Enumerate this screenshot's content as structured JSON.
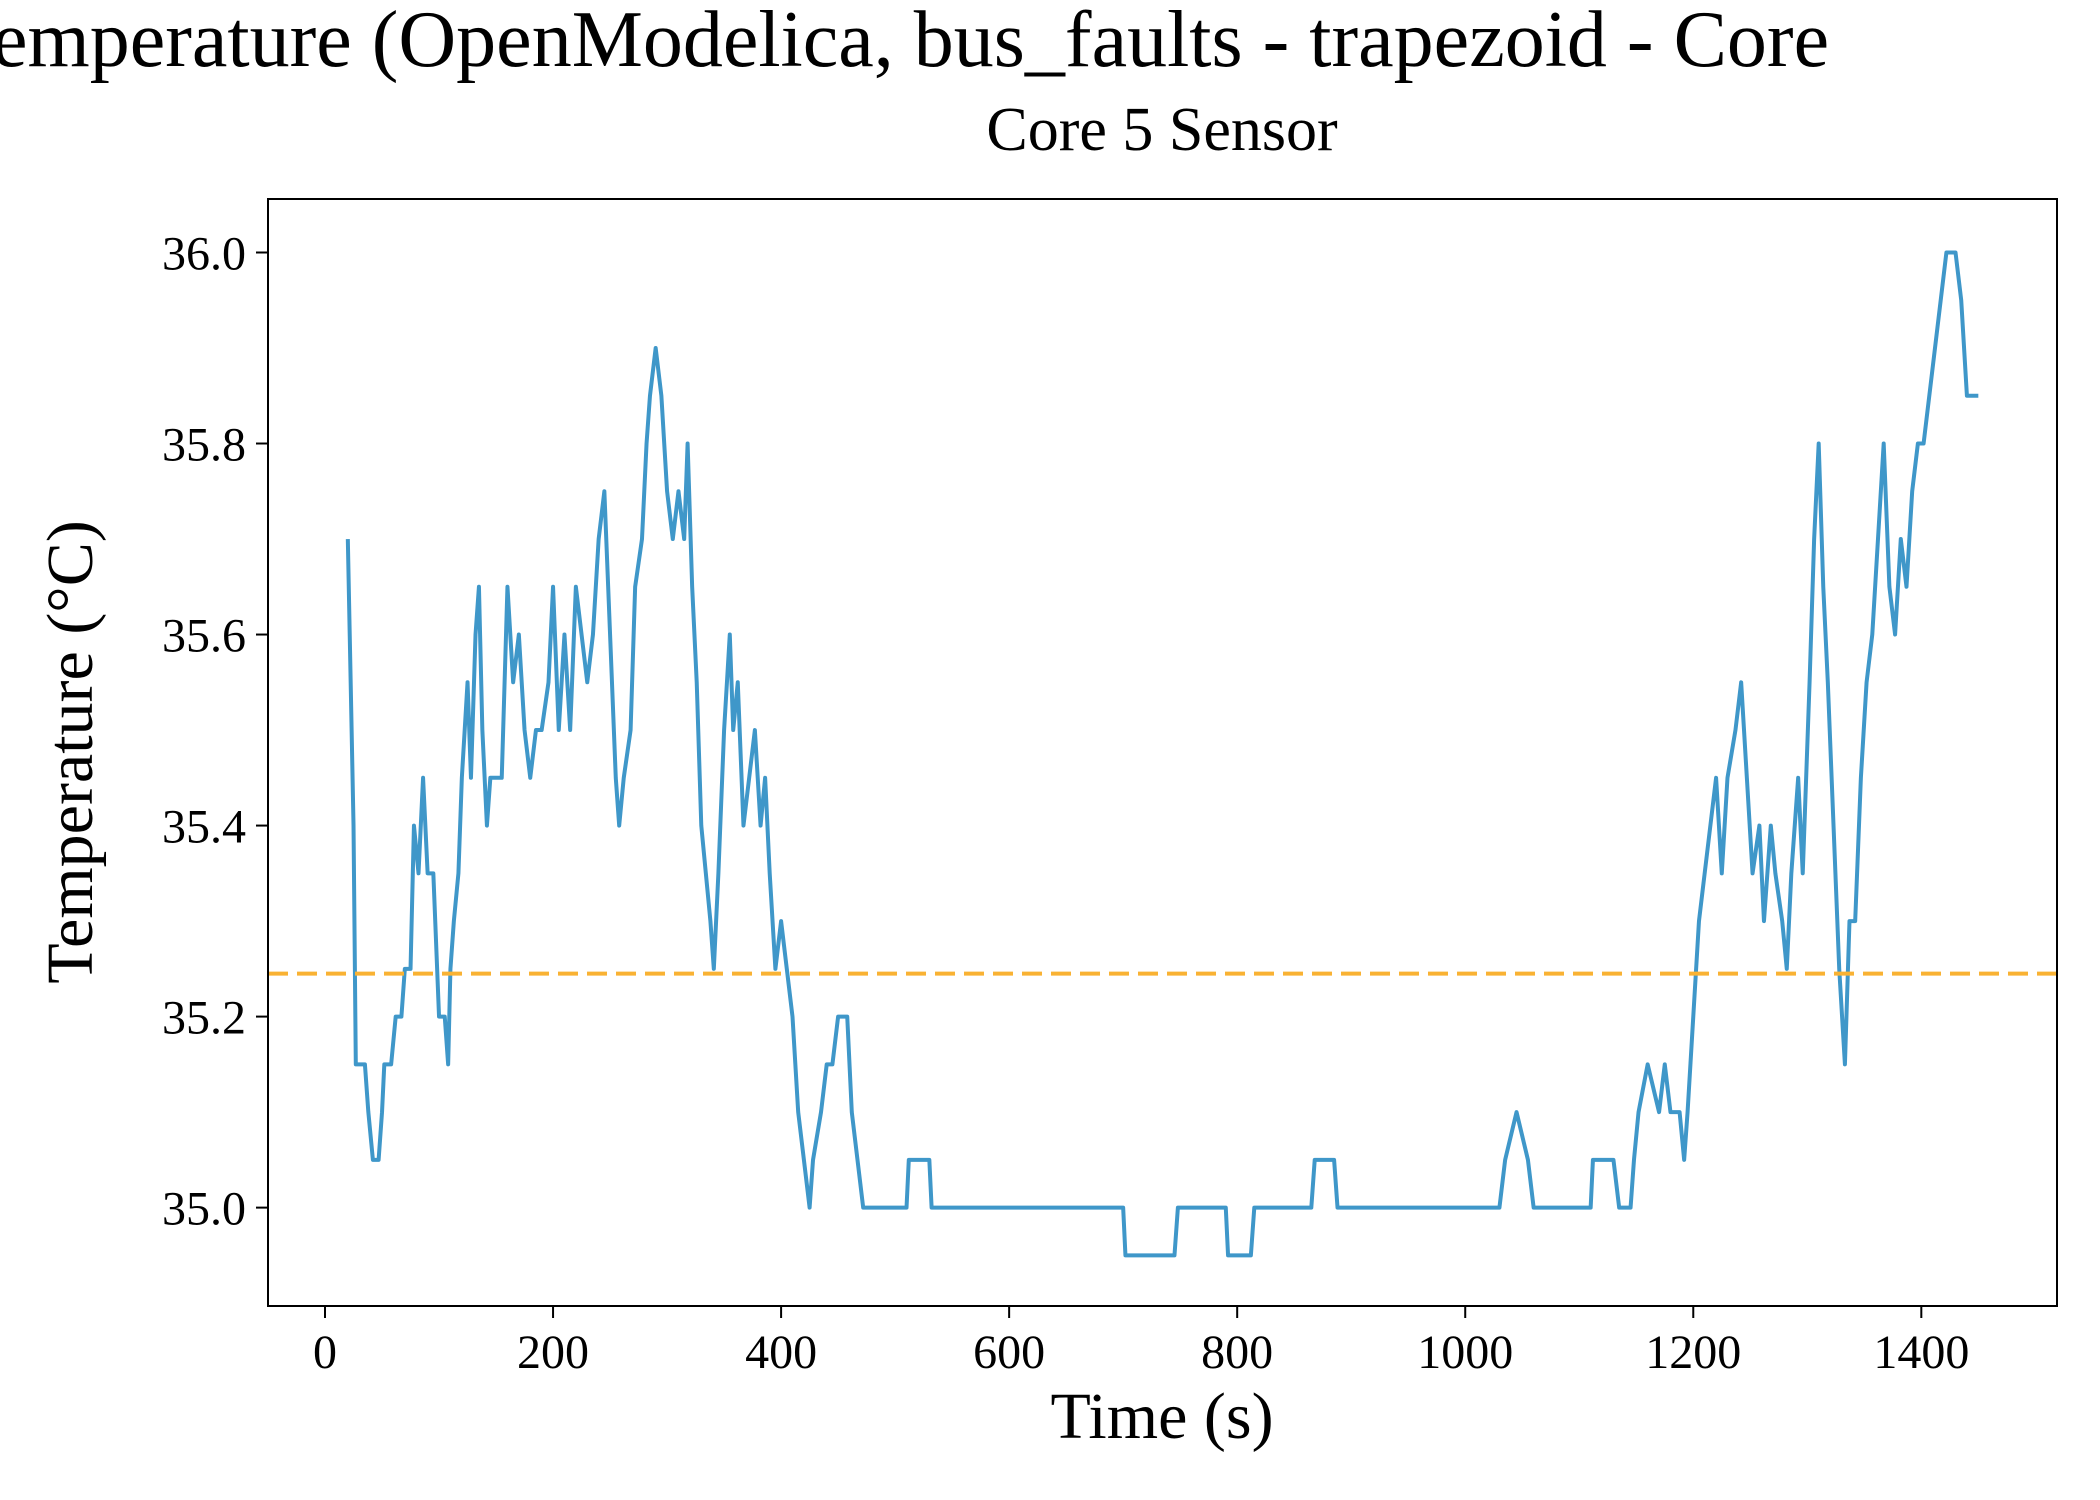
{
  "chart_data": {
    "type": "line",
    "title": "emperature (OpenModelica, bus_faults - trapezoid - Core",
    "subtitle": "Core 5 Sensor",
    "x_label": "Time (s)",
    "y_label": "Temperature (°C)",
    "xlim": [
      -50,
      1519
    ],
    "ylim": [
      34.897,
      36.056
    ],
    "xticks": [
      0,
      200,
      400,
      600,
      800,
      1000,
      1200,
      1400
    ],
    "yticks": [
      {
        "value": 35,
        "label": "35.0"
      },
      35.2,
      35.4,
      35.6,
      35.8,
      {
        "value": 36,
        "label": "36.0"
      }
    ],
    "grid": false,
    "threshold": {
      "value": 35.245,
      "color": "#f9b233",
      "style": "dashed"
    },
    "x": [
      20,
      25,
      27,
      35,
      38,
      42,
      47,
      50,
      52,
      58,
      62,
      67,
      70,
      75,
      78,
      82,
      86,
      90,
      95,
      100,
      105,
      108,
      110,
      113,
      117,
      120,
      125,
      128,
      132,
      135,
      138,
      142,
      145,
      150,
      155,
      160,
      165,
      170,
      175,
      180,
      185,
      190,
      196,
      200,
      205,
      210,
      215,
      220,
      225,
      230,
      235,
      240,
      245,
      250,
      255,
      258,
      262,
      268,
      272,
      278,
      282,
      285,
      290,
      295,
      300,
      305,
      310,
      315,
      318,
      322,
      326,
      330,
      334,
      338,
      341,
      345,
      350,
      355,
      358,
      362,
      367,
      372,
      377,
      382,
      386,
      390,
      395,
      400,
      405,
      410,
      415,
      420,
      425,
      428,
      435,
      440,
      445,
      450,
      458,
      462,
      467,
      472,
      510,
      512,
      530,
      532,
      700,
      702,
      745,
      748,
      790,
      792,
      812,
      815,
      865,
      868,
      885,
      888,
      1030,
      1035,
      1045,
      1055,
      1060,
      1110,
      1112,
      1130,
      1135,
      1145,
      1148,
      1152,
      1160,
      1170,
      1175,
      1180,
      1188,
      1192,
      1195,
      1200,
      1205,
      1210,
      1215,
      1220,
      1225,
      1230,
      1237,
      1242,
      1247,
      1252,
      1258,
      1262,
      1268,
      1272,
      1278,
      1282,
      1286,
      1292,
      1296,
      1302,
      1306,
      1310,
      1314,
      1318,
      1323,
      1328,
      1333,
      1337,
      1342,
      1347,
      1352,
      1357,
      1362,
      1367,
      1372,
      1377,
      1382,
      1387,
      1392,
      1397,
      1402,
      1407,
      1412,
      1417,
      1422,
      1430,
      1435,
      1440,
      1450
    ],
    "series": [
      {
        "color": "#3f97c9",
        "values": [
          35.7,
          35.4,
          35.15,
          35.15,
          35.1,
          35.05,
          35.05,
          35.1,
          35.15,
          35.15,
          35.2,
          35.2,
          35.25,
          35.25,
          35.4,
          35.35,
          35.45,
          35.35,
          35.35,
          35.2,
          35.2,
          35.15,
          35.25,
          35.3,
          35.35,
          35.45,
          35.55,
          35.45,
          35.6,
          35.65,
          35.5,
          35.4,
          35.45,
          35.45,
          35.45,
          35.65,
          35.55,
          35.6,
          35.5,
          35.45,
          35.5,
          35.5,
          35.55,
          35.65,
          35.5,
          35.6,
          35.5,
          35.65,
          35.6,
          35.55,
          35.6,
          35.7,
          35.75,
          35.6,
          35.45,
          35.4,
          35.45,
          35.5,
          35.65,
          35.7,
          35.8,
          35.85,
          35.9,
          35.85,
          35.75,
          35.7,
          35.75,
          35.7,
          35.8,
          35.65,
          35.55,
          35.4,
          35.35,
          35.3,
          35.25,
          35.35,
          35.5,
          35.6,
          35.5,
          35.55,
          35.4,
          35.45,
          35.5,
          35.4,
          35.45,
          35.35,
          35.25,
          35.3,
          35.25,
          35.2,
          35.1,
          35.05,
          35.0,
          35.05,
          35.1,
          35.15,
          35.15,
          35.2,
          35.2,
          35.1,
          35.05,
          35.0,
          35.0,
          35.05,
          35.05,
          35.0,
          35.0,
          34.95,
          34.95,
          35.0,
          35.0,
          34.95,
          34.95,
          35.0,
          35.0,
          35.05,
          35.05,
          35.0,
          35.0,
          35.05,
          35.1,
          35.05,
          35.0,
          35.0,
          35.05,
          35.05,
          35.0,
          35.0,
          35.05,
          35.1,
          35.15,
          35.1,
          35.15,
          35.1,
          35.1,
          35.05,
          35.1,
          35.2,
          35.3,
          35.35,
          35.4,
          35.45,
          35.35,
          35.45,
          35.5,
          35.55,
          35.45,
          35.35,
          35.4,
          35.3,
          35.4,
          35.35,
          35.3,
          35.25,
          35.35,
          35.45,
          35.35,
          35.55,
          35.7,
          35.8,
          35.65,
          35.55,
          35.4,
          35.25,
          35.15,
          35.3,
          35.3,
          35.45,
          35.55,
          35.6,
          35.7,
          35.8,
          35.65,
          35.6,
          35.7,
          35.65,
          35.75,
          35.8,
          35.8,
          35.85,
          35.9,
          35.95,
          36.0,
          36.0,
          35.95,
          35.85,
          35.85
        ]
      }
    ]
  }
}
